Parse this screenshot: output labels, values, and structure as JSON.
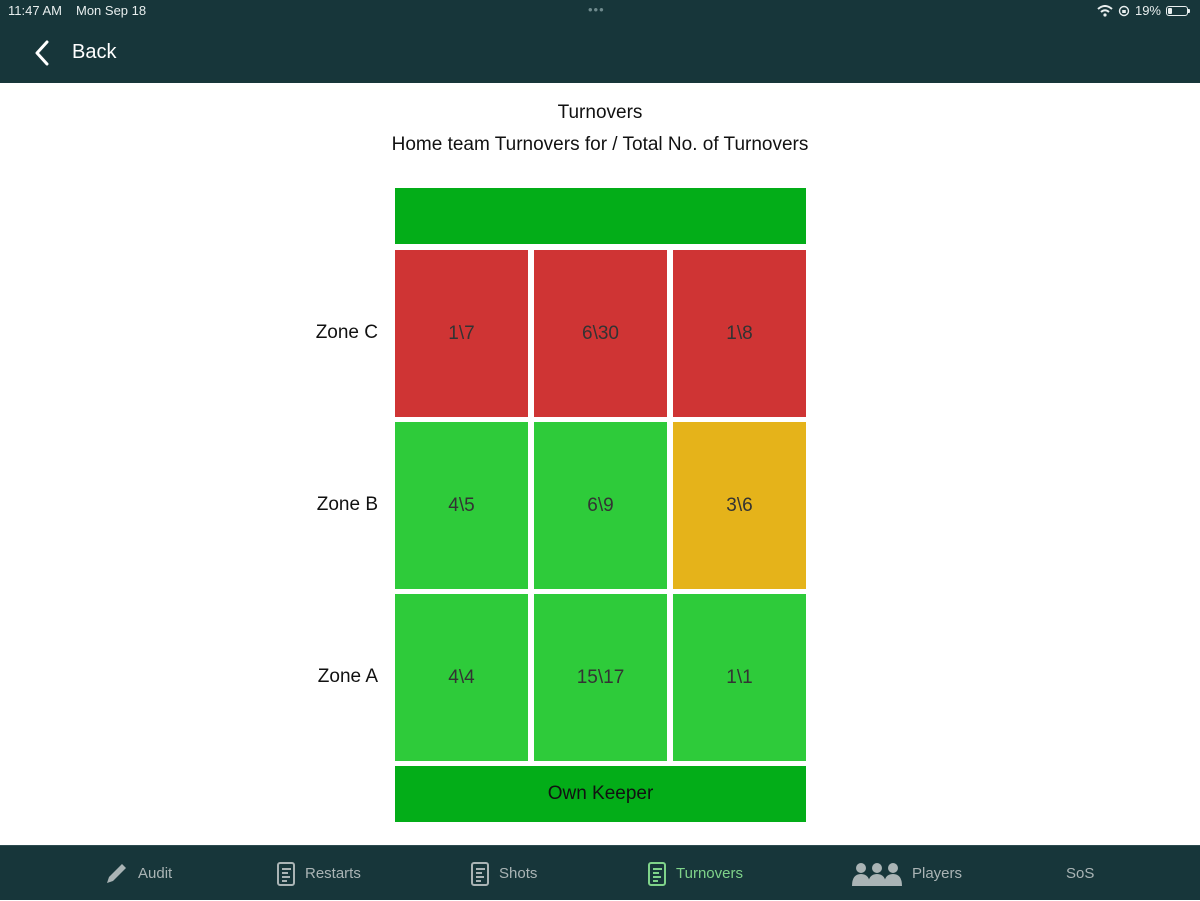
{
  "status": {
    "time": "11:47 AM",
    "date": "Mon Sep 18",
    "battery": "19%"
  },
  "nav": {
    "back_label": "Back"
  },
  "page": {
    "title": "Turnovers",
    "subtitle": "Home team Turnovers for / Total No. of Turnovers"
  },
  "pitch": {
    "top_end_label": "",
    "bottom_end_label": "Own Keeper",
    "zones": [
      {
        "label": "Zone C",
        "cells": [
          {
            "value": "1\\7",
            "status": "red"
          },
          {
            "value": "6\\30",
            "status": "red"
          },
          {
            "value": "1\\8",
            "status": "red"
          }
        ]
      },
      {
        "label": "Zone B",
        "cells": [
          {
            "value": "4\\5",
            "status": "green"
          },
          {
            "value": "6\\9",
            "status": "green"
          },
          {
            "value": "3\\6",
            "status": "amber"
          }
        ]
      },
      {
        "label": "Zone A",
        "cells": [
          {
            "value": "4\\4",
            "status": "green"
          },
          {
            "value": "15\\17",
            "status": "green"
          },
          {
            "value": "1\\1",
            "status": "green"
          }
        ]
      }
    ]
  },
  "colors": {
    "bar": "#17363a",
    "end_green": "#03ad18",
    "red": "#cf3434",
    "green": "#2ecb3a",
    "amber": "#e5b31a",
    "active_tab": "#7fd38a"
  },
  "tabs": [
    {
      "label": "Audit",
      "icon": "pencil-icon",
      "active": false
    },
    {
      "label": "Restarts",
      "icon": "document-icon",
      "active": false
    },
    {
      "label": "Shots",
      "icon": "document-icon",
      "active": false
    },
    {
      "label": "Turnovers",
      "icon": "document-icon",
      "active": true
    },
    {
      "label": "Players",
      "icon": "people-icon",
      "active": false
    },
    {
      "label": "SoS",
      "icon": "",
      "active": false
    }
  ]
}
